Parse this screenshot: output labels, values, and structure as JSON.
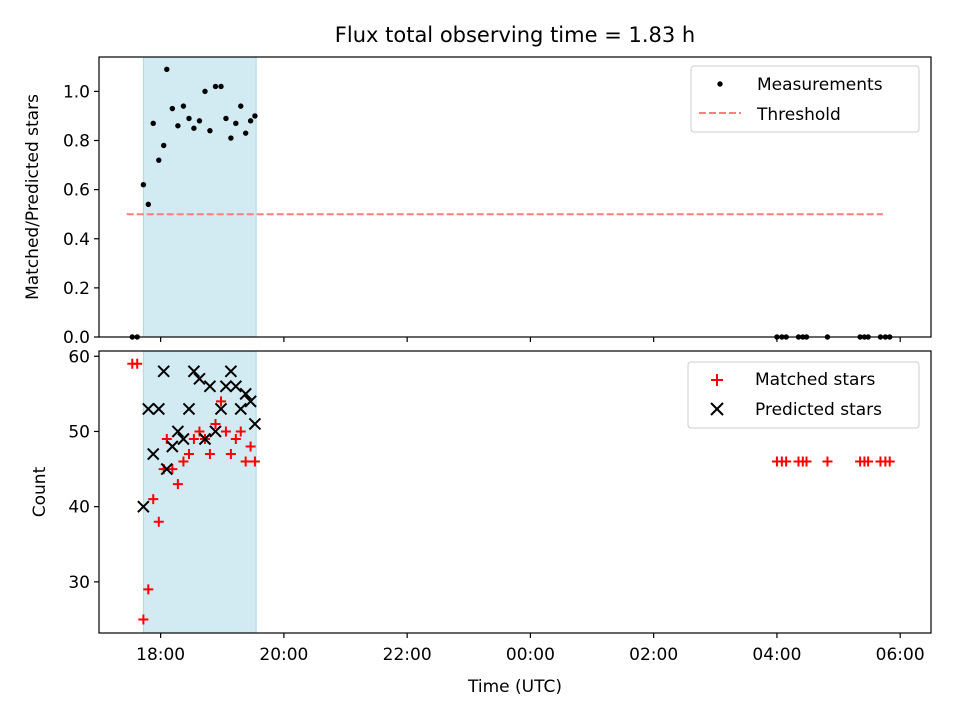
{
  "chart_data": {
    "title": "Flux total observing time = 1.83 h",
    "xlabel": "Time (UTC)",
    "x_unit": "hours since 00:00 of the first day",
    "xlim": [
      17.0,
      30.5
    ],
    "xticks": [
      {
        "value": 18,
        "label": "18:00"
      },
      {
        "value": 20,
        "label": "20:00"
      },
      {
        "value": 22,
        "label": "22:00"
      },
      {
        "value": 24,
        "label": "00:00"
      },
      {
        "value": 26,
        "label": "02:00"
      },
      {
        "value": 28,
        "label": "04:00"
      },
      {
        "value": 30,
        "label": "06:00"
      }
    ],
    "shaded_span": {
      "x0": 17.72,
      "x1": 19.55,
      "color": "#add8e6"
    },
    "top": {
      "type": "scatter",
      "ylabel": "Matched/Predicted stars",
      "ylim": [
        0,
        1.14
      ],
      "yticks": [
        {
          "value": 0.0,
          "label": "0.0"
        },
        {
          "value": 0.2,
          "label": "0.2"
        },
        {
          "value": 0.4,
          "label": "0.4"
        },
        {
          "value": 0.6,
          "label": "0.6"
        },
        {
          "value": 0.8,
          "label": "0.8"
        },
        {
          "value": 1.0,
          "label": "1.0"
        }
      ],
      "legend_position": "top-right",
      "series": [
        {
          "name": "Measurements",
          "color": "#000000",
          "marker": "dot",
          "points": [
            [
              17.54,
              0.0
            ],
            [
              17.62,
              0.0
            ],
            [
              17.72,
              0.62
            ],
            [
              17.8,
              0.54
            ],
            [
              17.88,
              0.87
            ],
            [
              17.97,
              0.72
            ],
            [
              18.05,
              0.78
            ],
            [
              18.1,
              1.09
            ],
            [
              18.19,
              0.93
            ],
            [
              18.28,
              0.86
            ],
            [
              18.37,
              0.94
            ],
            [
              18.46,
              0.89
            ],
            [
              18.54,
              0.85
            ],
            [
              18.63,
              0.88
            ],
            [
              18.72,
              1.0
            ],
            [
              18.8,
              0.84
            ],
            [
              18.89,
              1.02
            ],
            [
              18.98,
              1.02
            ],
            [
              19.06,
              0.89
            ],
            [
              19.14,
              0.81
            ],
            [
              19.22,
              0.87
            ],
            [
              19.3,
              0.94
            ],
            [
              19.38,
              0.83
            ],
            [
              19.46,
              0.88
            ],
            [
              19.53,
              0.9
            ],
            [
              28.0,
              0.0
            ],
            [
              28.08,
              0.0
            ],
            [
              28.15,
              0.0
            ],
            [
              28.35,
              0.0
            ],
            [
              28.42,
              0.0
            ],
            [
              28.48,
              0.0
            ],
            [
              28.82,
              0.0
            ],
            [
              29.35,
              0.0
            ],
            [
              29.42,
              0.0
            ],
            [
              29.48,
              0.0
            ],
            [
              29.68,
              0.0
            ],
            [
              29.76,
              0.0
            ],
            [
              29.83,
              0.0
            ]
          ]
        },
        {
          "name": "Threshold",
          "color": "#ff7f7f",
          "style": "dashed",
          "points": [
            [
              17.45,
              0.5
            ],
            [
              29.72,
              0.5
            ]
          ]
        }
      ]
    },
    "bottom": {
      "type": "scatter",
      "ylabel": "Count",
      "ylim": [
        23.2,
        60.7
      ],
      "yticks": [
        {
          "value": 30,
          "label": "30"
        },
        {
          "value": 40,
          "label": "40"
        },
        {
          "value": 50,
          "label": "50"
        },
        {
          "value": 60,
          "label": "60"
        }
      ],
      "legend_position": "top-right",
      "series": [
        {
          "name": "Matched stars",
          "color": "#ff0000",
          "marker": "plus",
          "points": [
            [
              17.54,
              59
            ],
            [
              17.62,
              59
            ],
            [
              17.72,
              25
            ],
            [
              17.8,
              29
            ],
            [
              17.88,
              41
            ],
            [
              17.97,
              38
            ],
            [
              18.05,
              45
            ],
            [
              18.1,
              49
            ],
            [
              18.19,
              45
            ],
            [
              18.28,
              43
            ],
            [
              18.37,
              46
            ],
            [
              18.46,
              47
            ],
            [
              18.54,
              49
            ],
            [
              18.63,
              50
            ],
            [
              18.72,
              49
            ],
            [
              18.8,
              47
            ],
            [
              18.89,
              51
            ],
            [
              18.98,
              54
            ],
            [
              19.06,
              50
            ],
            [
              19.14,
              47
            ],
            [
              19.22,
              49
            ],
            [
              19.3,
              50
            ],
            [
              19.38,
              46
            ],
            [
              19.46,
              48
            ],
            [
              19.53,
              46
            ],
            [
              28.0,
              46
            ],
            [
              28.08,
              46
            ],
            [
              28.15,
              46
            ],
            [
              28.35,
              46
            ],
            [
              28.42,
              46
            ],
            [
              28.48,
              46
            ],
            [
              28.82,
              46
            ],
            [
              29.35,
              46
            ],
            [
              29.42,
              46
            ],
            [
              29.48,
              46
            ],
            [
              29.68,
              46
            ],
            [
              29.76,
              46
            ],
            [
              29.83,
              46
            ]
          ]
        },
        {
          "name": "Predicted stars",
          "color": "#000000",
          "marker": "x",
          "points": [
            [
              17.72,
              40
            ],
            [
              17.8,
              53
            ],
            [
              17.88,
              47
            ],
            [
              17.97,
              53
            ],
            [
              18.05,
              58
            ],
            [
              18.1,
              45
            ],
            [
              18.19,
              48
            ],
            [
              18.28,
              50
            ],
            [
              18.37,
              49
            ],
            [
              18.46,
              53
            ],
            [
              18.54,
              58
            ],
            [
              18.63,
              57
            ],
            [
              18.72,
              49
            ],
            [
              18.8,
              56
            ],
            [
              18.89,
              50
            ],
            [
              18.98,
              53
            ],
            [
              19.06,
              56
            ],
            [
              19.14,
              58
            ],
            [
              19.22,
              56
            ],
            [
              19.3,
              53
            ],
            [
              19.38,
              55
            ],
            [
              19.46,
              54
            ],
            [
              19.53,
              51
            ]
          ]
        }
      ]
    }
  }
}
